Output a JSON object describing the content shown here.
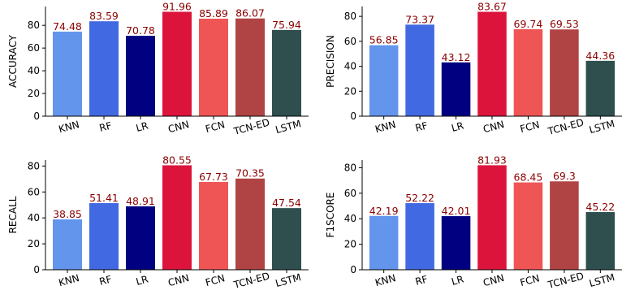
{
  "chart_data": [
    {
      "type": "bar",
      "ylabel": "ACCURACY",
      "categories": [
        "KNN",
        "RF",
        "LR",
        "CNN",
        "FCN",
        "TCN-ED",
        "LSTM"
      ],
      "values": [
        74.48,
        83.59,
        70.78,
        91.96,
        85.89,
        86.07,
        75.94
      ],
      "value_labels": [
        "74.48",
        "83.59",
        "70.78",
        "91.96",
        "85.89",
        "86.07",
        "75.94"
      ],
      "ylim": [
        0,
        96.6
      ],
      "yticks": [
        0,
        20,
        40,
        60,
        80
      ],
      "grid": false
    },
    {
      "type": "bar",
      "ylabel": "PRECISION",
      "categories": [
        "KNN",
        "RF",
        "LR",
        "CNN",
        "FCN",
        "TCN-ED",
        "LSTM"
      ],
      "values": [
        56.85,
        73.37,
        43.12,
        83.67,
        69.74,
        69.53,
        44.36
      ],
      "value_labels": [
        "56.85",
        "73.37",
        "43.12",
        "83.67",
        "69.74",
        "69.53",
        "44.36"
      ],
      "ylim": [
        0,
        87.9
      ],
      "yticks": [
        0,
        20,
        40,
        60,
        80
      ],
      "grid": false
    },
    {
      "type": "bar",
      "ylabel": "RECALL",
      "categories": [
        "KNN",
        "RF",
        "LR",
        "CNN",
        "FCN",
        "TCN-ED",
        "LSTM"
      ],
      "values": [
        38.85,
        51.41,
        48.91,
        80.55,
        67.73,
        70.35,
        47.54
      ],
      "value_labels": [
        "38.85",
        "51.41",
        "48.91",
        "80.55",
        "67.73",
        "70.35",
        "47.54"
      ],
      "ylim": [
        0,
        84.6
      ],
      "yticks": [
        0,
        20,
        40,
        60,
        80
      ],
      "grid": false
    },
    {
      "type": "bar",
      "ylabel": "F1SCORE",
      "categories": [
        "KNN",
        "RF",
        "LR",
        "CNN",
        "FCN",
        "TCN-ED",
        "LSTM"
      ],
      "values": [
        42.19,
        52.22,
        42.01,
        81.93,
        68.45,
        69.3,
        45.22
      ],
      "value_labels": [
        "42.19",
        "52.22",
        "42.01",
        "81.93",
        "68.45",
        "69.3",
        "45.22"
      ],
      "ylim": [
        0,
        86.0
      ],
      "yticks": [
        0,
        20,
        40,
        60,
        80
      ],
      "grid": false
    }
  ],
  "colors": {
    "bars": [
      "#6495ed",
      "#4169e1",
      "#000080",
      "#dc143c",
      "#f05555",
      "#b04444",
      "#2f4f4f"
    ],
    "value_label": "#8b0000",
    "axis": "#000000"
  }
}
